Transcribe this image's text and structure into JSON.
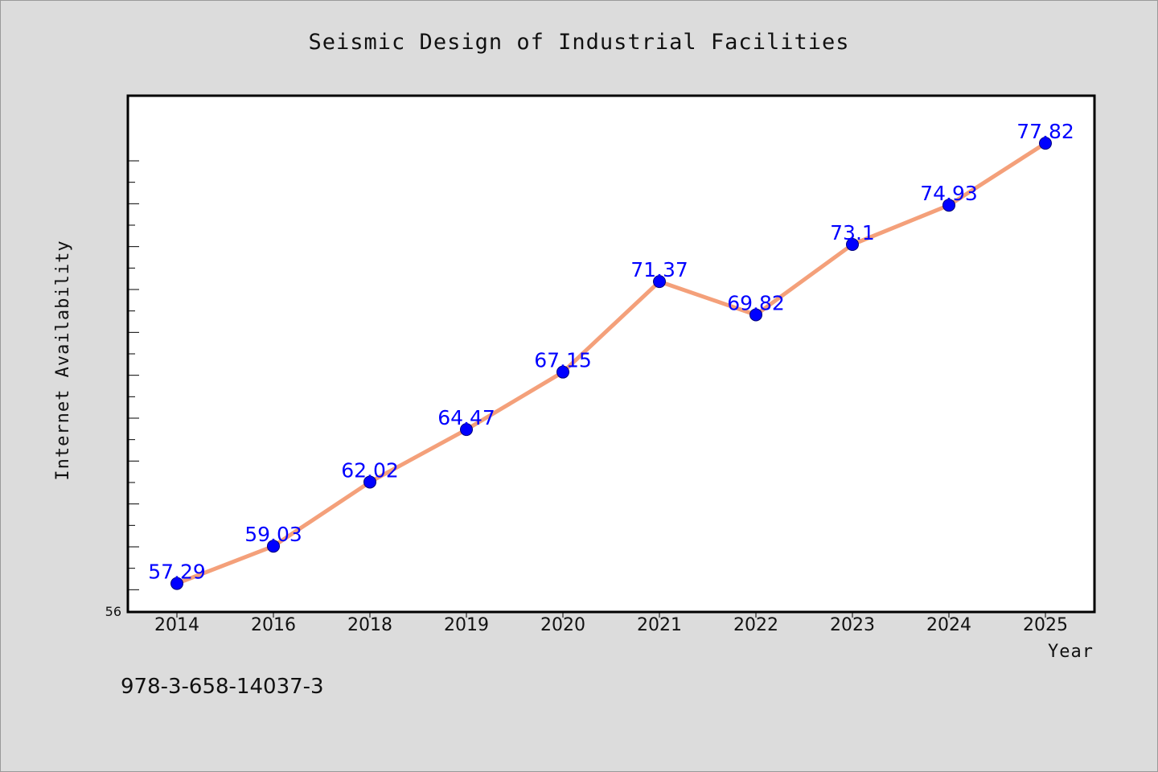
{
  "chart_data": {
    "type": "line",
    "title": "Seismic Design of Industrial Facilities",
    "xlabel": "Year",
    "ylabel": "Internet Availability",
    "categories": [
      "2014",
      "2016",
      "2018",
      "2019",
      "2020",
      "2021",
      "2022",
      "2023",
      "2024",
      "2025"
    ],
    "series": [
      {
        "values": [
          57.29,
          59.03,
          62.02,
          64.47,
          67.15,
          71.37,
          69.82,
          73.1,
          74.93,
          77.82
        ],
        "labels": [
          "57.29",
          "59.03",
          "62.02",
          "64.47",
          "67.15",
          "71.37",
          "69.82",
          "73.1",
          "74.93",
          "77.82"
        ]
      }
    ],
    "ylim": [
      56,
      80
    ],
    "y_min_tick_label": "56",
    "grid": false,
    "line_color": "#f4a07a",
    "marker_color": "#0000ff",
    "label_color": "#0000ff"
  },
  "footer_text": "978-3-658-14037-3"
}
